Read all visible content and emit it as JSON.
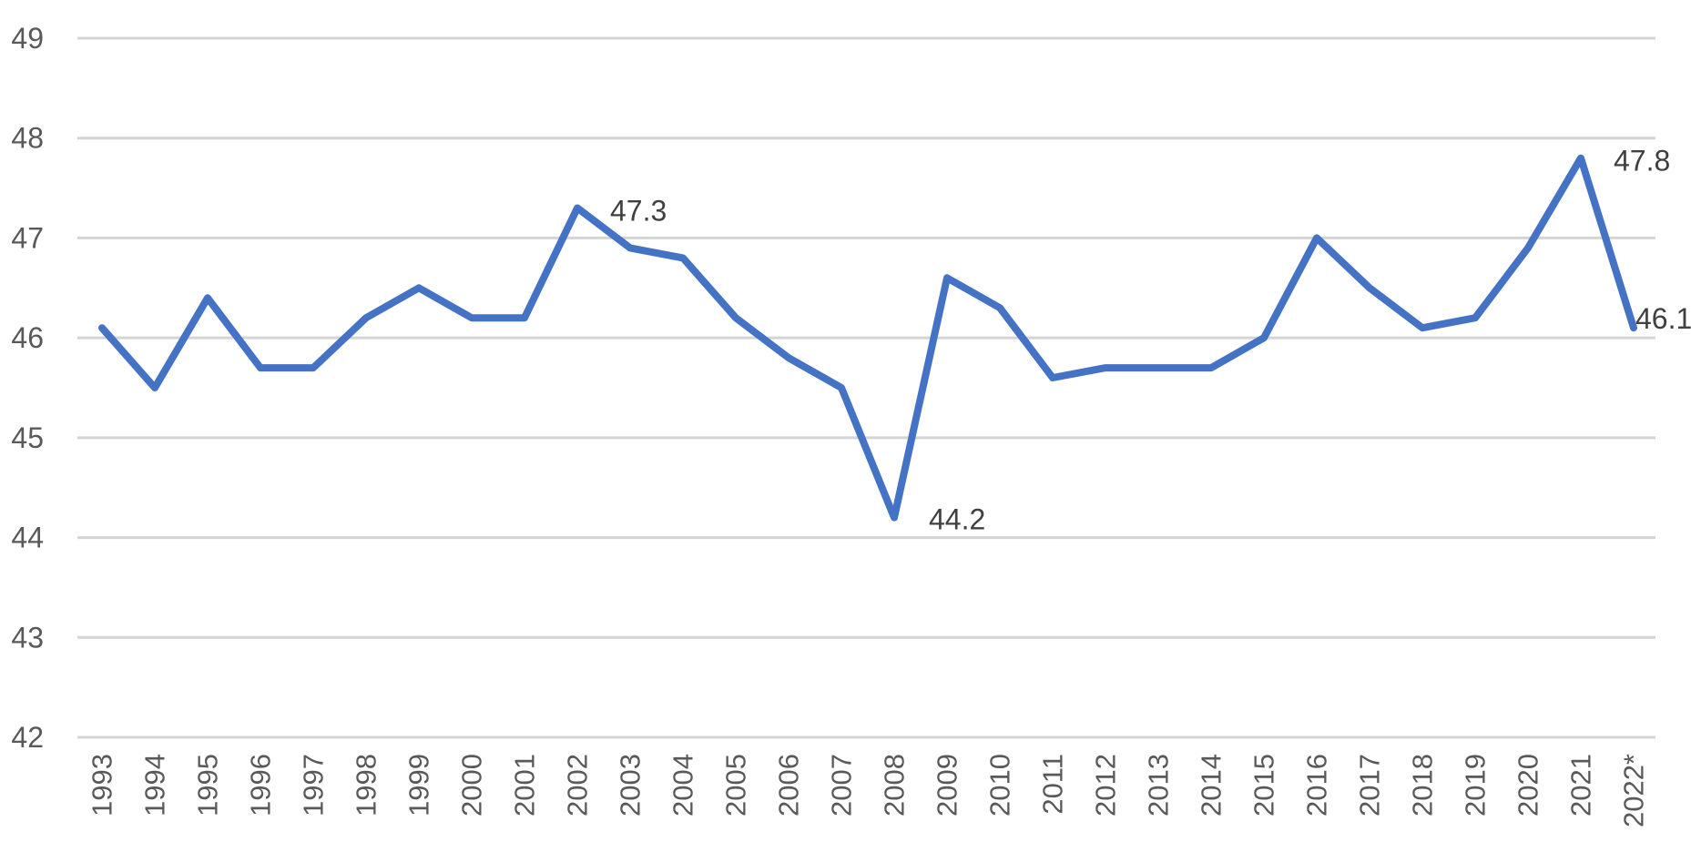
{
  "chart_data": {
    "type": "line",
    "title": "",
    "xlabel": "",
    "ylabel": "",
    "ylim": [
      42,
      49
    ],
    "yticks": [
      "42",
      "43",
      "44",
      "45",
      "46",
      "47",
      "48",
      "49"
    ],
    "grid": true,
    "legend": "none",
    "categories": [
      "1993",
      "1994",
      "1995",
      "1996",
      "1997",
      "1998",
      "1999",
      "2000",
      "2001",
      "2002",
      "2003",
      "2004",
      "2005",
      "2006",
      "2007",
      "2008",
      "2009",
      "2010",
      "2011",
      "2012",
      "2013",
      "2014",
      "2015",
      "2016",
      "2017",
      "2018",
      "2019",
      "2020",
      "2021",
      "2022*"
    ],
    "series": [
      {
        "color": "#4472c4",
        "values": [
          46.1,
          45.5,
          46.4,
          45.7,
          45.7,
          46.2,
          46.5,
          46.2,
          46.2,
          47.3,
          46.9,
          46.8,
          46.2,
          45.8,
          45.5,
          44.2,
          46.6,
          46.3,
          45.6,
          45.7,
          45.7,
          45.7,
          46.0,
          47.0,
          46.5,
          46.1,
          46.2,
          46.9,
          47.8,
          46.1
        ]
      }
    ],
    "annotations": [
      {
        "category": "2002",
        "text": "47.3"
      },
      {
        "category": "2008",
        "text": "44.2"
      },
      {
        "category": "2021",
        "text": "47.8"
      },
      {
        "category": "2022*",
        "text": "46.1"
      }
    ],
    "colors": {
      "grid": "#d4d4d4",
      "tick_text": "#595959",
      "label_text": "#404040"
    }
  }
}
